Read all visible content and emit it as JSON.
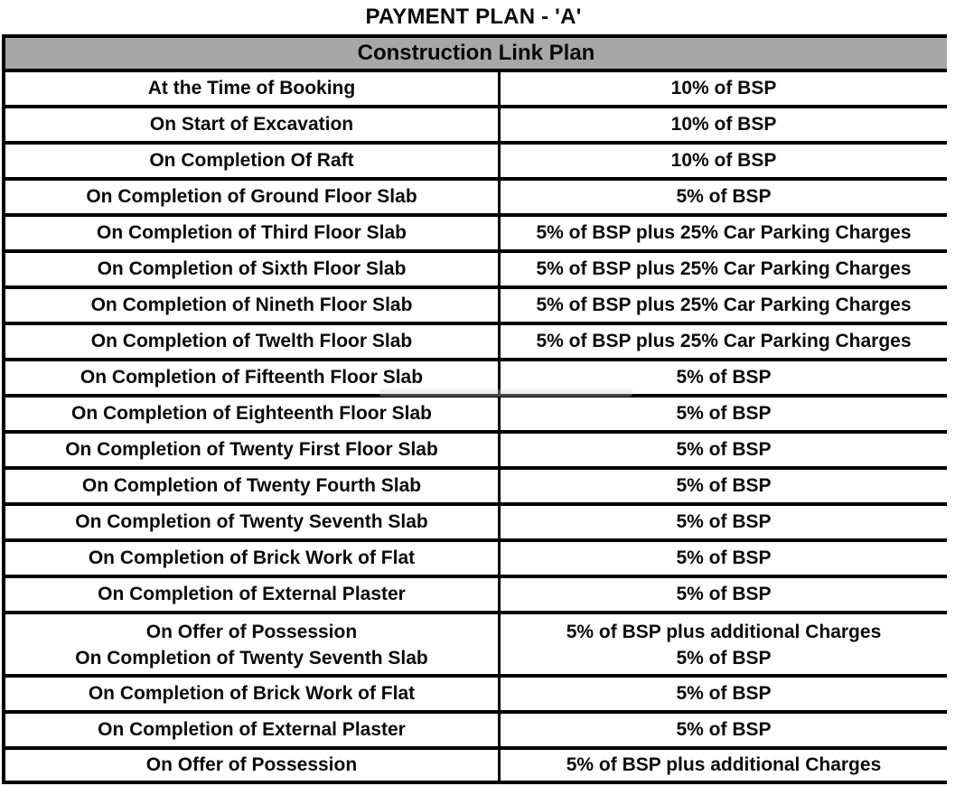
{
  "page": {
    "title": "PAYMENT PLAN - 'A'"
  },
  "table": {
    "header": "Construction Link Plan",
    "rows": [
      {
        "milestone": "At the Time of Booking",
        "payment": "10% of BSP"
      },
      {
        "milestone": "On Start of Excavation",
        "payment": "10% of BSP"
      },
      {
        "milestone": "On Completion Of Raft",
        "payment": "10% of BSP"
      },
      {
        "milestone": "On Completion of Ground Floor Slab",
        "payment": "5% of BSP"
      },
      {
        "milestone": "On Completion of Third Floor Slab",
        "payment": "5% of BSP plus 25% Car Parking Charges"
      },
      {
        "milestone": "On Completion of Sixth Floor Slab",
        "payment": "5% of BSP plus 25% Car Parking Charges"
      },
      {
        "milestone": "On Completion of Nineth Floor Slab",
        "payment": "5% of BSP plus 25% Car Parking Charges"
      },
      {
        "milestone": "On Completion of Twelth Floor Slab",
        "payment": "5% of BSP plus 25% Car Parking Charges"
      },
      {
        "milestone": "On Completion of Fifteenth Floor Slab",
        "payment": "5% of BSP"
      },
      {
        "milestone": "On Completion of Eighteenth Floor Slab",
        "payment": "5% of BSP"
      },
      {
        "milestone": "On Completion of Twenty First Floor Slab",
        "payment": "5% of BSP"
      },
      {
        "milestone": "On Completion of Twenty Fourth Slab",
        "payment": "5% of BSP"
      },
      {
        "milestone": "On Completion of Twenty Seventh Slab",
        "payment": "5% of BSP"
      },
      {
        "milestone": "On Completion of Brick Work of Flat",
        "payment": "5% of BSP"
      },
      {
        "milestone": "On Completion of External Plaster",
        "payment": "5% of BSP"
      },
      {
        "milestone": "On Offer of Possession",
        "payment": "5% of BSP plus additional Charges"
      },
      {
        "milestone": "On Completion of Twenty Seventh Slab",
        "payment": "5% of BSP"
      },
      {
        "milestone": "On Completion of Brick Work of Flat",
        "payment": "5% of BSP"
      },
      {
        "milestone": "On Completion of External Plaster",
        "payment": "5% of BSP"
      },
      {
        "milestone": "On Offer of Possession",
        "payment": "5% of BSP plus additional Charges"
      }
    ]
  },
  "colors": {
    "header_bg": "#a7a7a7",
    "border": "#000000",
    "row_bg": "#ffffff",
    "text": "#0a0a0a"
  }
}
